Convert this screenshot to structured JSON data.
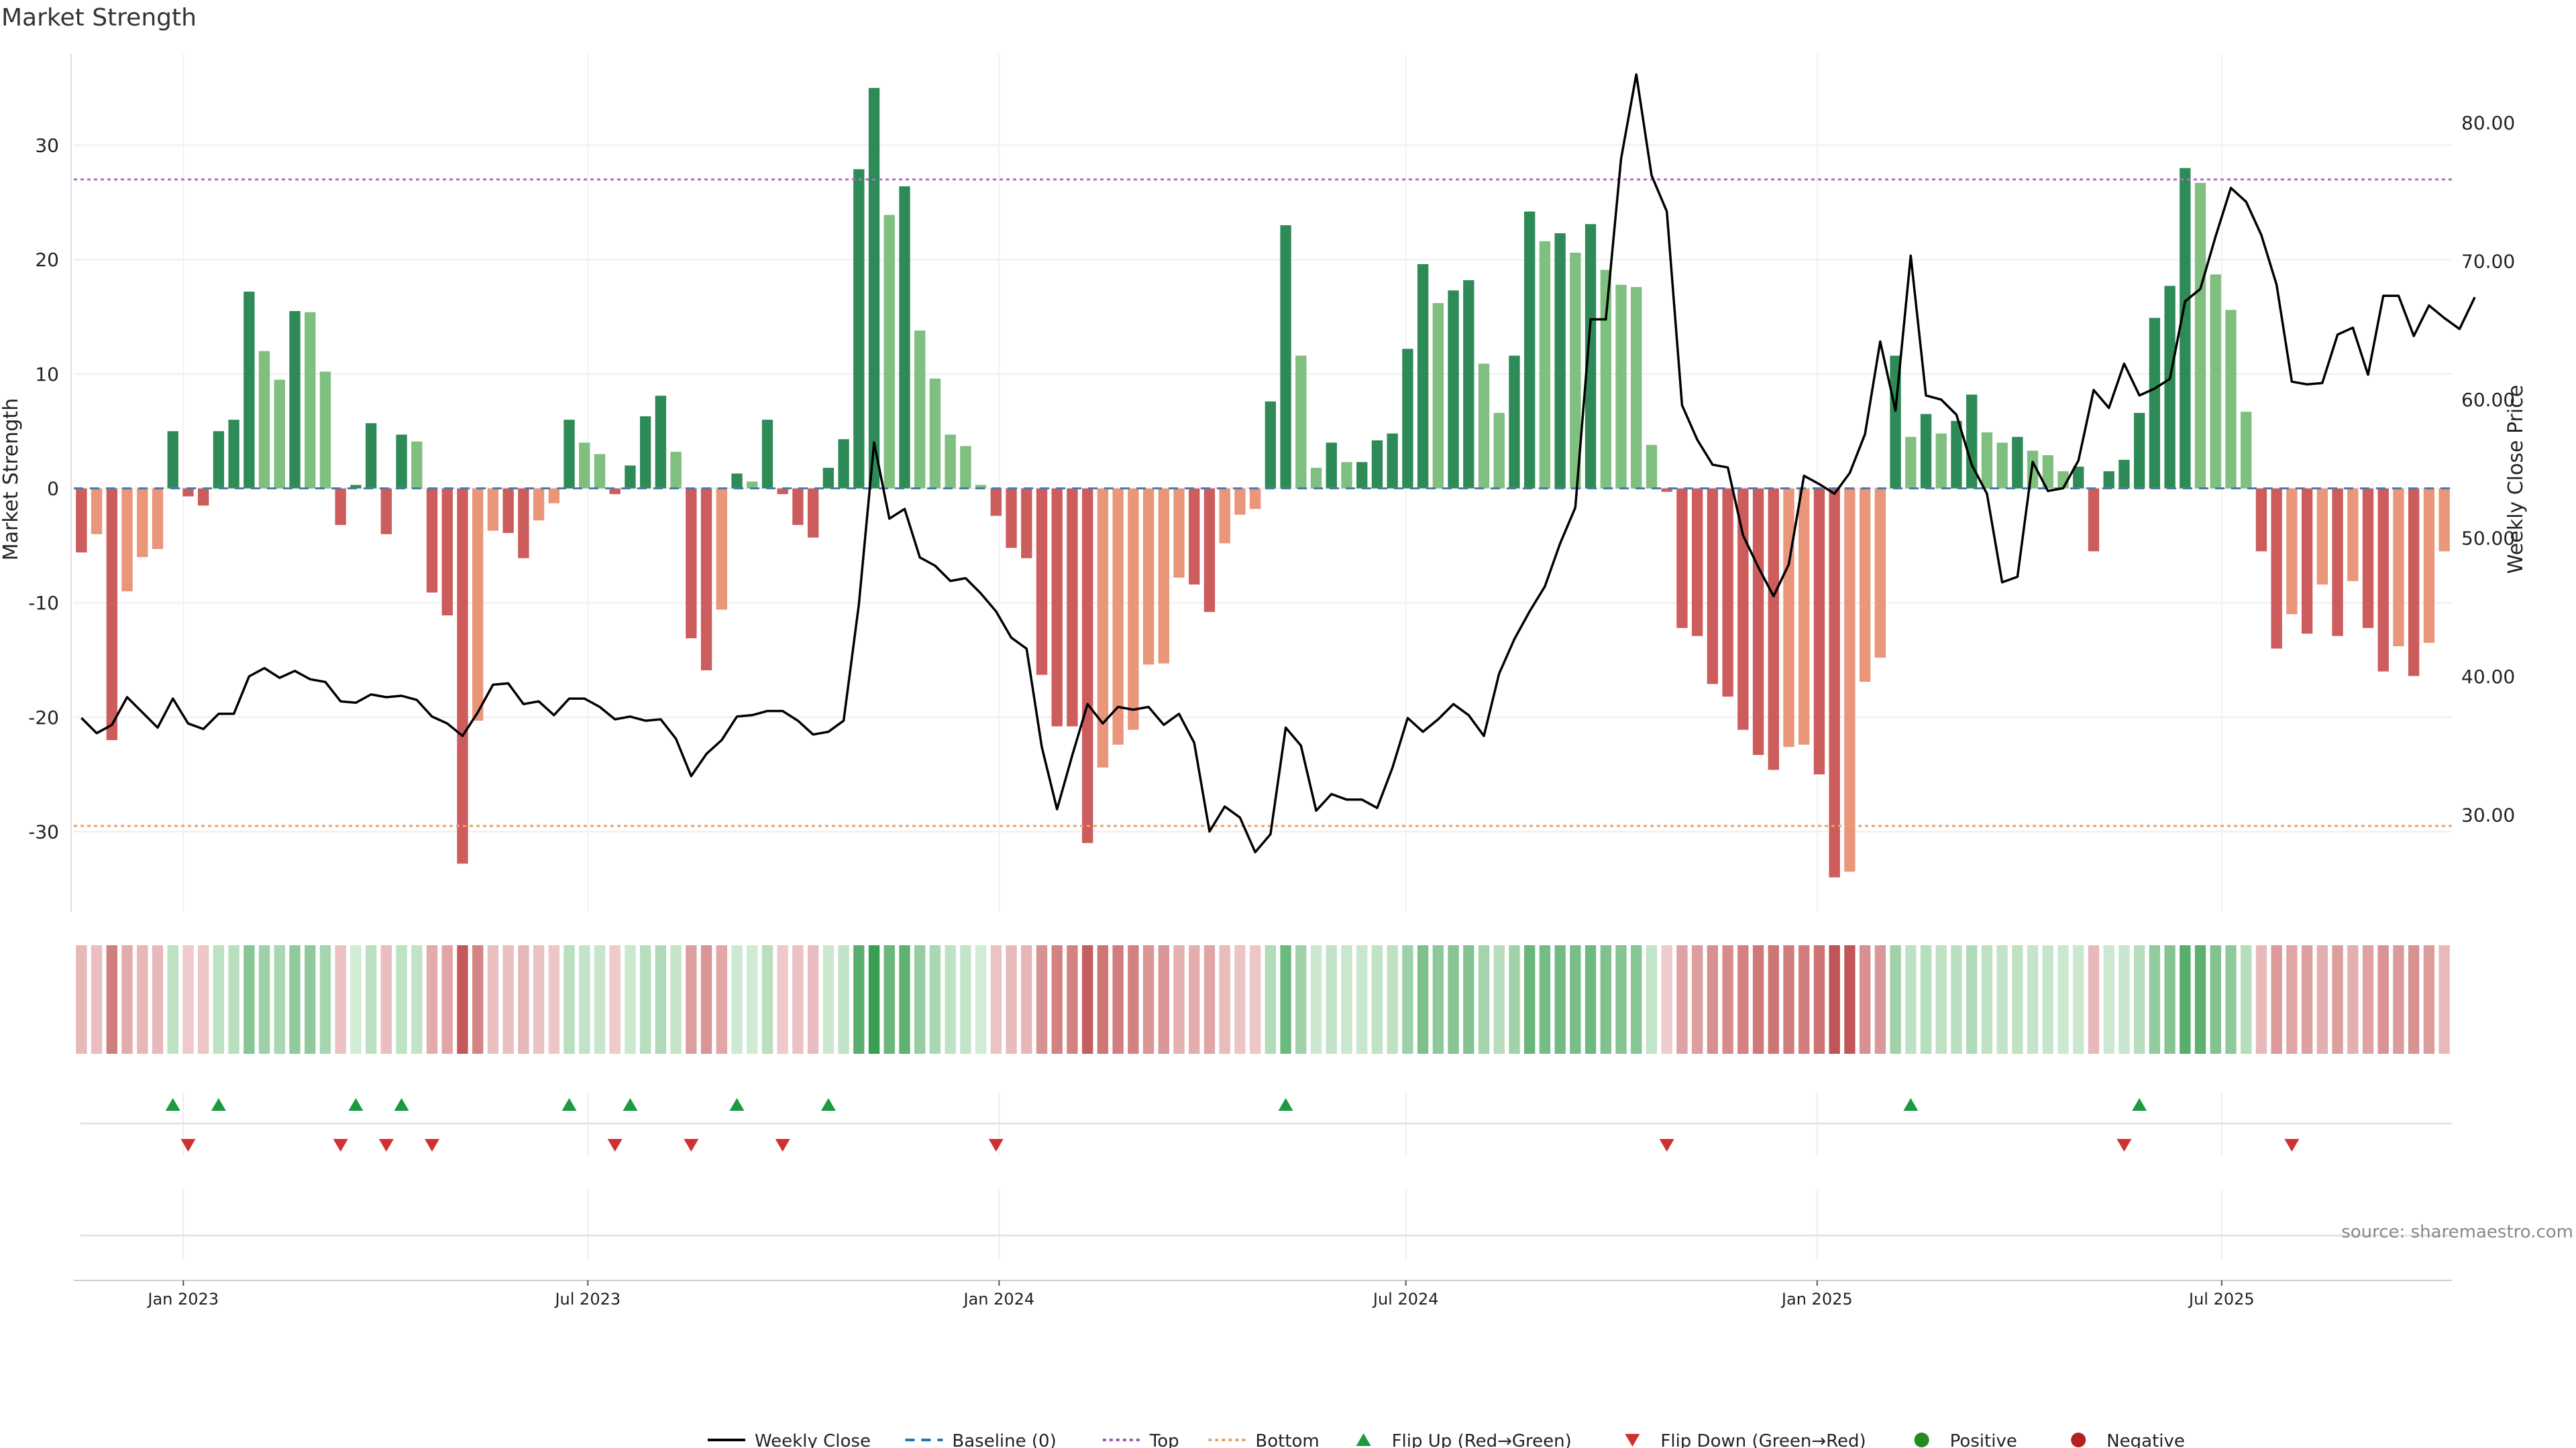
{
  "chart_data": {
    "type": "bar",
    "title": "Market Strength",
    "ylabel": "Market Strength",
    "y2label": "Weekly Close Price",
    "ylim": [
      -37,
      38
    ],
    "y2lim": [
      23,
      85
    ],
    "yticks": [
      30,
      20,
      10,
      0,
      -10,
      -20,
      -30
    ],
    "y2ticks": [
      "80.00",
      "70.00",
      "60.00",
      "50.00",
      "40.00",
      "30.00"
    ],
    "y2tick_values": [
      80,
      70,
      60,
      50,
      40,
      30
    ],
    "x_start": "2022-11-13",
    "x_end": "2025-10-12",
    "xticks": [
      {
        "date": "2023-01-01",
        "label": "Jan 2023"
      },
      {
        "date": "2023-07-01",
        "label": "Jul 2023"
      },
      {
        "date": "2024-01-01",
        "label": "Jan 2024"
      },
      {
        "date": "2024-07-01",
        "label": "Jul 2024"
      },
      {
        "date": "2025-01-01",
        "label": "Jan 2025"
      },
      {
        "date": "2025-07-01",
        "label": "Jul 2025"
      }
    ],
    "top_line": 27,
    "bottom_line": -29.5,
    "strength": [
      -5.6,
      -4.0,
      -22.0,
      -9.0,
      -6.0,
      -5.3,
      5.0,
      -0.7,
      -1.5,
      5.0,
      6.0,
      17.2,
      12.0,
      9.5,
      15.5,
      15.4,
      10.2,
      -3.2,
      0.3,
      5.7,
      -4.0,
      4.7,
      4.1,
      -9.1,
      -11.1,
      -32.8,
      -20.3,
      -3.7,
      -3.9,
      -6.1,
      -2.8,
      -1.3,
      6.0,
      4.0,
      3.0,
      -0.5,
      2.0,
      6.3,
      8.1,
      3.2,
      -13.1,
      -15.9,
      -10.6,
      1.3,
      0.6,
      6.0,
      -0.5,
      -3.2,
      -4.3,
      1.8,
      4.3,
      27.9,
      35.0,
      23.9,
      26.4,
      13.8,
      9.6,
      4.7,
      3.7,
      0.3,
      -2.4,
      -5.2,
      -6.1,
      -16.3,
      -20.8,
      -20.8,
      -31.0,
      -24.4,
      -22.4,
      -21.1,
      -15.4,
      -15.3,
      -7.8,
      -8.4,
      -10.8,
      -4.8,
      -2.3,
      -1.8,
      7.6,
      23.0,
      11.6,
      1.8,
      4.0,
      2.3,
      2.3,
      4.2,
      4.8,
      12.2,
      19.6,
      16.2,
      17.3,
      18.2,
      10.9,
      6.6,
      11.6,
      24.2,
      21.6,
      22.3,
      20.6,
      23.1,
      19.1,
      17.8,
      17.6,
      3.8,
      -0.3,
      -12.2,
      -12.9,
      -17.1,
      -18.2,
      -21.1,
      -23.3,
      -24.6,
      -22.6,
      -22.4,
      -25.0,
      -34.0,
      -33.5,
      -16.9,
      -14.8,
      11.6,
      4.5,
      6.5,
      4.8,
      5.9,
      8.2,
      4.9,
      4.0,
      4.5,
      3.3,
      2.9,
      1.5,
      1.9,
      -5.5,
      1.5,
      2.5,
      6.6,
      14.9,
      17.7,
      28.0,
      26.7,
      18.7,
      15.6,
      6.7,
      -5.5,
      -14.0,
      -11.0,
      -12.7,
      -8.4,
      -12.9,
      -8.1,
      -12.2,
      -16.0,
      -13.8,
      -16.4,
      -13.5,
      -5.5
    ],
    "weekly_close": [
      37.0,
      35.9,
      36.5,
      38.5,
      37.4,
      36.3,
      38.4,
      36.6,
      36.2,
      37.3,
      37.3,
      40.0,
      40.6,
      39.9,
      40.4,
      39.8,
      39.6,
      38.2,
      38.1,
      38.7,
      38.5,
      38.6,
      38.3,
      37.1,
      36.6,
      35.7,
      37.4,
      39.4,
      39.5,
      38.0,
      38.2,
      37.2,
      38.4,
      38.4,
      37.8,
      36.9,
      37.1,
      36.8,
      36.9,
      35.5,
      32.8,
      34.4,
      35.4,
      37.1,
      37.2,
      37.5,
      37.5,
      36.8,
      35.8,
      36.0,
      36.8,
      45.2,
      56.9,
      51.4,
      52.1,
      48.6,
      48.0,
      46.9,
      47.1,
      46.0,
      44.7,
      42.8,
      42.0,
      34.9,
      30.4,
      34.3,
      38.0,
      36.6,
      37.8,
      37.6,
      37.8,
      36.5,
      37.3,
      35.2,
      28.8,
      30.6,
      29.8,
      27.3,
      28.6,
      36.3,
      35.0,
      30.3,
      31.5,
      31.1,
      31.1,
      30.5,
      33.4,
      37.0,
      36.0,
      36.9,
      38.0,
      37.2,
      35.7,
      40.2,
      42.7,
      44.7,
      46.5,
      49.6,
      52.2,
      65.8,
      65.8,
      77.4,
      83.5,
      76.2,
      73.6,
      59.6,
      57.1,
      55.3,
      55.1,
      50.2,
      47.9,
      45.8,
      48.1,
      54.5,
      53.9,
      53.2,
      54.7,
      57.5,
      64.2,
      59.2,
      70.4,
      60.3,
      60.0,
      58.9,
      55.3,
      53.2,
      46.8,
      47.2,
      55.5,
      53.4,
      53.6,
      55.6,
      60.7,
      59.4,
      62.6,
      60.3,
      60.8,
      61.5,
      67.1,
      68.0,
      71.8,
      75.3,
      74.3,
      71.9,
      68.3,
      61.3,
      61.1,
      61.2,
      64.7,
      65.2,
      61.8,
      67.5,
      67.5,
      64.6,
      66.8,
      65.9,
      65.1,
      67.4
    ],
    "flip_up_indices": [
      6,
      9,
      18,
      21,
      32,
      36,
      43,
      49,
      79,
      120,
      135
    ],
    "flip_down_indices": [
      7,
      17,
      20,
      23,
      35,
      40,
      46,
      60,
      104,
      134,
      145
    ],
    "source_note": "source: sharemaestro.com",
    "legend": [
      {
        "label": "Weekly Close",
        "kind": "line",
        "color": "#000000"
      },
      {
        "label": "Baseline (0)",
        "kind": "dash",
        "color": "#1f77b4"
      },
      {
        "label": "Top",
        "kind": "dot",
        "color": "#9b59b6"
      },
      {
        "label": "Bottom",
        "kind": "dot",
        "color": "#e8a26a"
      },
      {
        "label": "Flip Up (Red→Green)",
        "kind": "tri-up",
        "color": "#1a9a41"
      },
      {
        "label": "Flip Down (Green→Red)",
        "kind": "tri-down",
        "color": "#d03030"
      },
      {
        "label": "Positive",
        "kind": "dot-marker",
        "color": "#228b22"
      },
      {
        "label": "Negative",
        "kind": "dot-marker",
        "color": "#b22222"
      }
    ],
    "colors": {
      "pos_strong": "#2e8b57",
      "pos_light": "#7fbf7f",
      "neg_strong": "#cd5c5c",
      "neg_light": "#e9967a",
      "top_line": "#b866c9",
      "bottom_line": "#e8a26a",
      "baseline": "#4a7bb0",
      "flip_up": "#1a9a41",
      "flip_down": "#d03030"
    }
  }
}
